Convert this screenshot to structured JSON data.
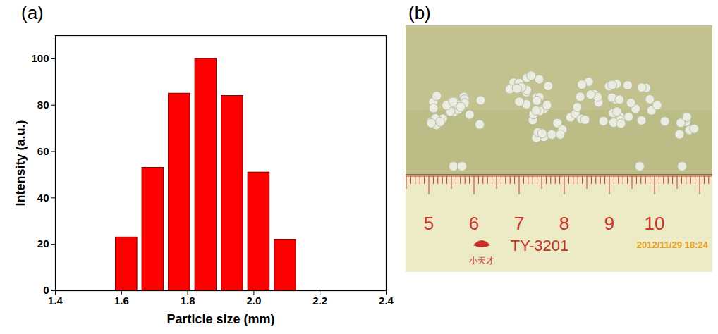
{
  "chart_data": {
    "type": "bar",
    "panel_label": "(a)",
    "x_label": "Particle size (mm)",
    "y_label": "Intensity (a.u.)",
    "bins": [
      1.575,
      1.655,
      1.735,
      1.815,
      1.895,
      1.975,
      2.055,
      2.135
    ],
    "values": [
      23,
      53,
      85,
      100,
      84,
      51,
      22
    ],
    "color": "#ff0000",
    "xlim": [
      1.4,
      2.4
    ],
    "xticks": [
      1.4,
      1.6,
      1.8,
      {
        "value": 2,
        "label": "2.0"
      },
      2.2,
      2.4
    ],
    "ylim": [
      0,
      110
    ],
    "yticks": [
      0,
      20,
      40,
      60,
      80,
      100
    ],
    "grid": false
  },
  "photo": {
    "panel_label": "(b)",
    "ruler_numbers": [
      5,
      6,
      7,
      8,
      9,
      10
    ],
    "ruler_text": "TY-3201",
    "brand": "小天才",
    "timestamp": "2012/11/29 18:24"
  }
}
